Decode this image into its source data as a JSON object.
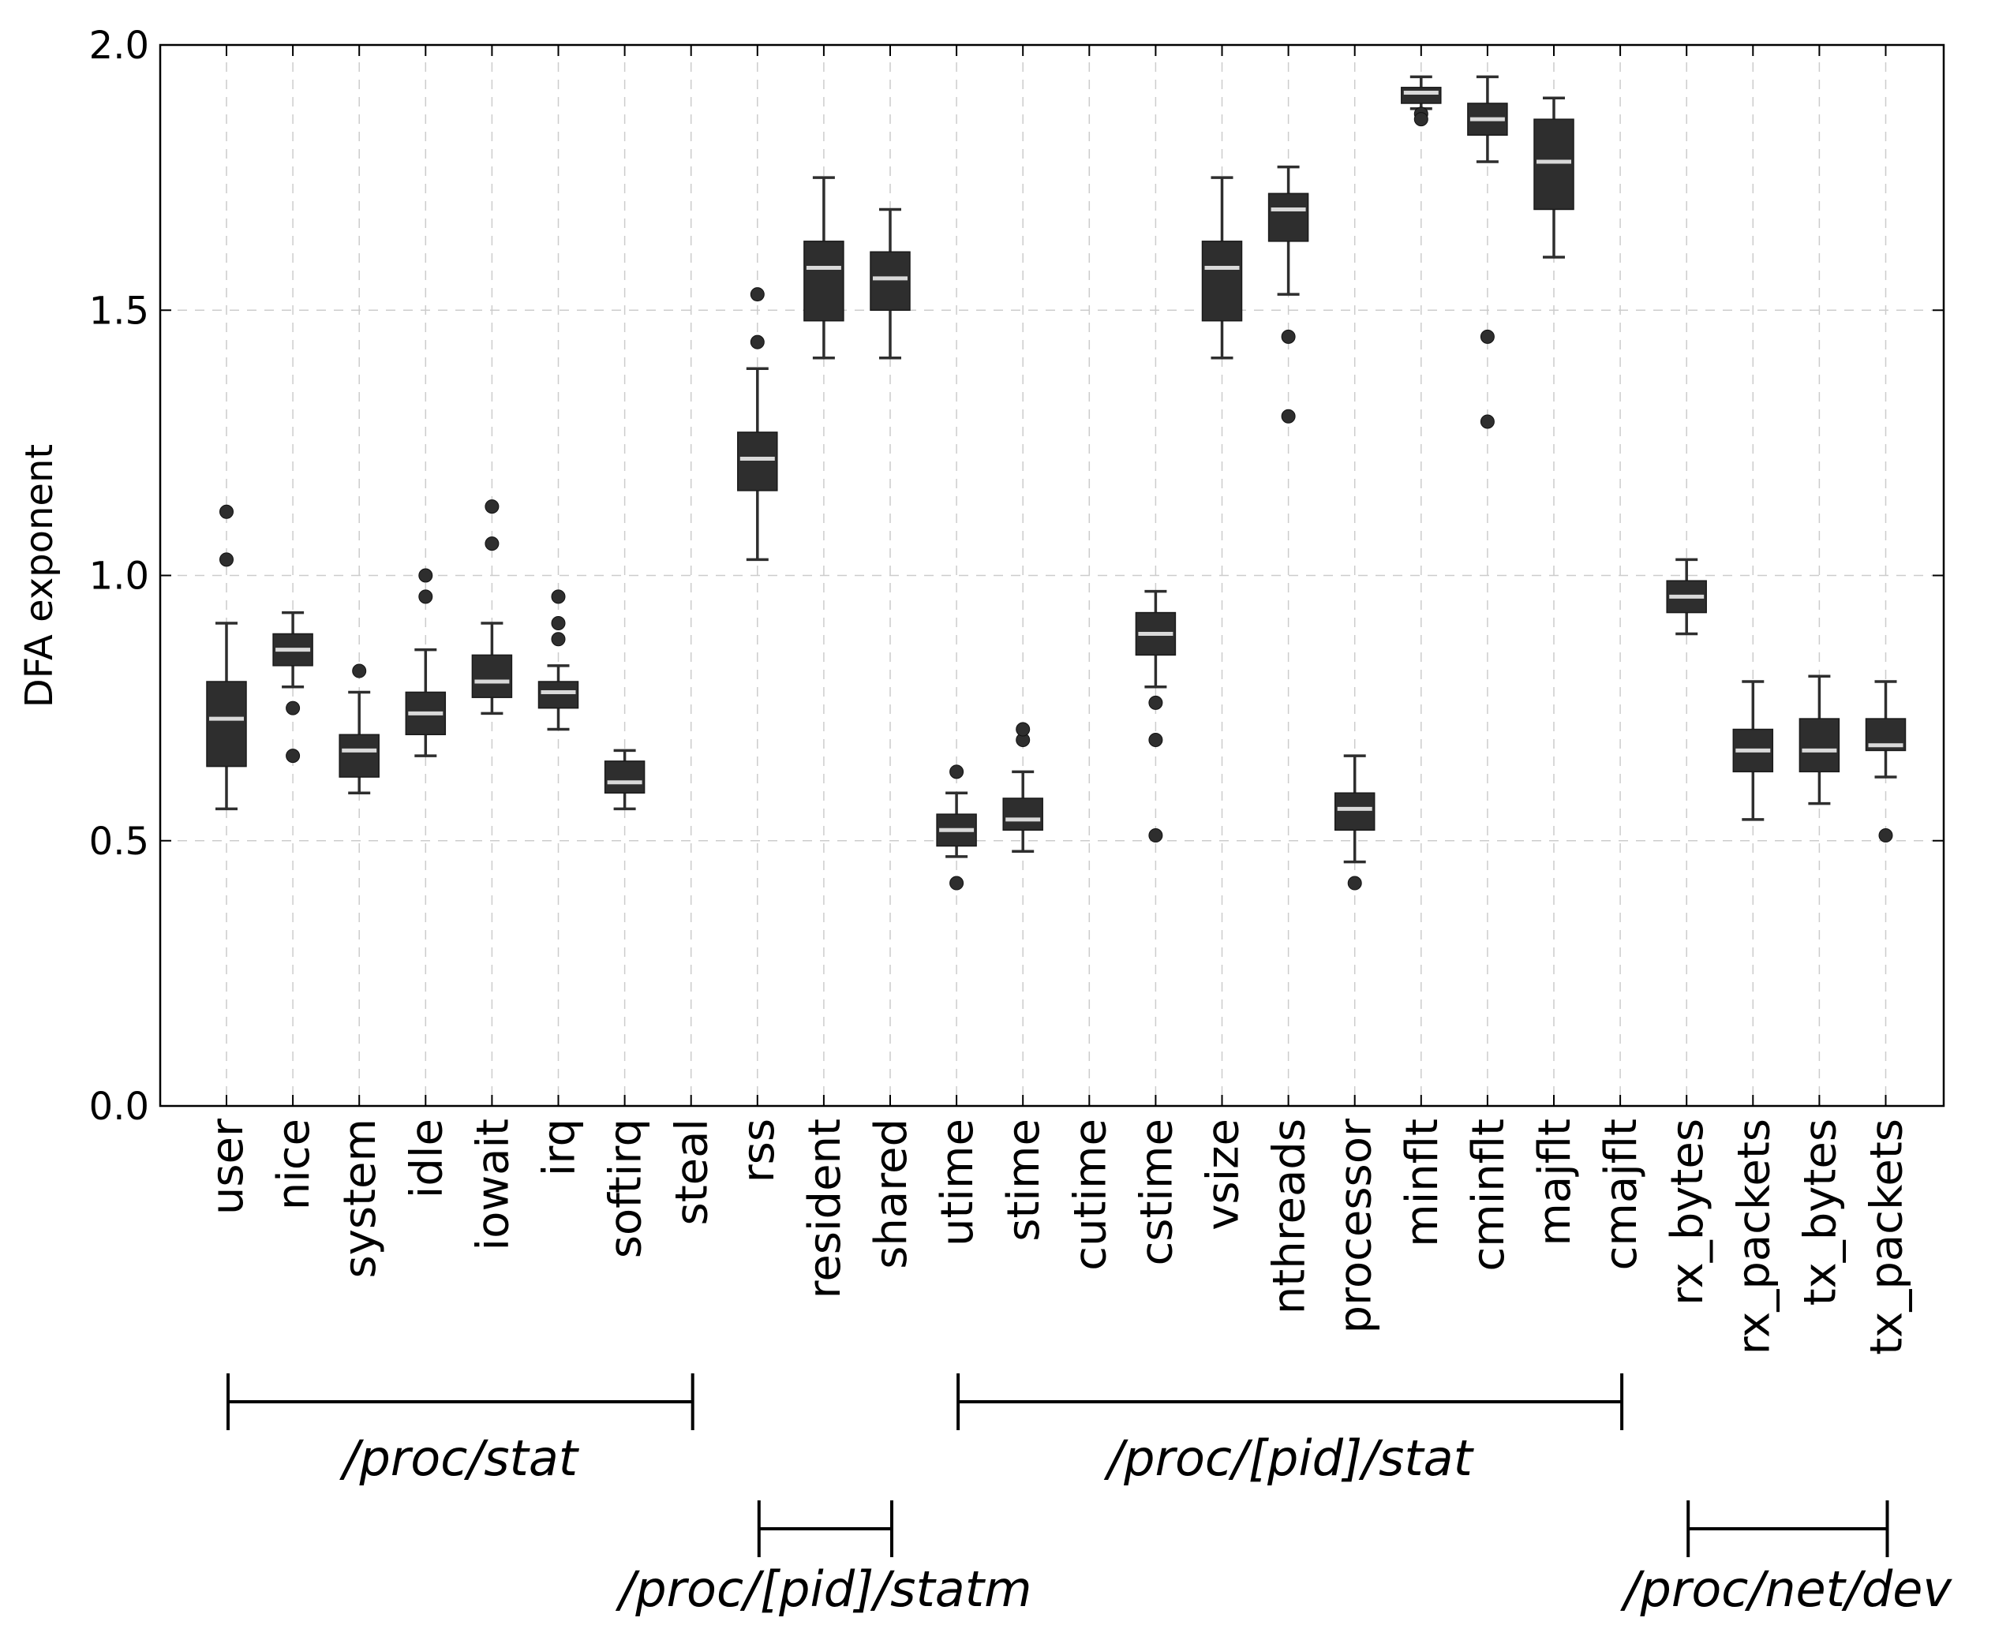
{
  "chart_data": {
    "type": "boxplot",
    "ylabel": "DFA exponent",
    "xlabel": "",
    "ylim": [
      0.0,
      2.0
    ],
    "yticks": [
      0.0,
      0.5,
      1.0,
      1.5,
      2.0
    ],
    "ytick_labels": [
      "0.0",
      "0.5",
      "1.0",
      "1.5",
      "2.0"
    ],
    "grid": true,
    "categories": [
      "user",
      "nice",
      "system",
      "idle",
      "iowait",
      "irq",
      "softirq",
      "steal",
      "rss",
      "resident",
      "shared",
      "utime",
      "stime",
      "cutime",
      "cstime",
      "vsize",
      "nthreads",
      "processor",
      "minflt",
      "cminflt",
      "majflt",
      "cmajflt",
      "rx_bytes",
      "rx_packets",
      "tx_bytes",
      "tx_packets"
    ],
    "boxes": [
      {
        "label": "user",
        "wlo": 0.56,
        "q1": 0.64,
        "med": 0.73,
        "q3": 0.8,
        "whi": 0.91,
        "outliers": [
          1.03,
          1.12
        ]
      },
      {
        "label": "nice",
        "wlo": 0.79,
        "q1": 0.83,
        "med": 0.86,
        "q3": 0.89,
        "whi": 0.93,
        "outliers": [
          0.75,
          0.66
        ]
      },
      {
        "label": "system",
        "wlo": 0.59,
        "q1": 0.62,
        "med": 0.67,
        "q3": 0.7,
        "whi": 0.78,
        "outliers": [
          0.82
        ]
      },
      {
        "label": "idle",
        "wlo": 0.66,
        "q1": 0.7,
        "med": 0.74,
        "q3": 0.78,
        "whi": 0.86,
        "outliers": [
          0.96,
          1.0
        ]
      },
      {
        "label": "iowait",
        "wlo": 0.74,
        "q1": 0.77,
        "med": 0.8,
        "q3": 0.85,
        "whi": 0.91,
        "outliers": [
          1.06,
          1.13
        ]
      },
      {
        "label": "irq",
        "wlo": 0.71,
        "q1": 0.75,
        "med": 0.78,
        "q3": 0.8,
        "whi": 0.83,
        "outliers": [
          0.88,
          0.91,
          0.96
        ]
      },
      {
        "label": "softirq",
        "wlo": 0.56,
        "q1": 0.59,
        "med": 0.61,
        "q3": 0.65,
        "whi": 0.67,
        "outliers": []
      },
      {
        "label": "steal",
        "empty": true
      },
      {
        "label": "rss",
        "wlo": 1.03,
        "q1": 1.16,
        "med": 1.22,
        "q3": 1.27,
        "whi": 1.39,
        "outliers": [
          1.44,
          1.53
        ]
      },
      {
        "label": "resident",
        "wlo": 1.41,
        "q1": 1.48,
        "med": 1.58,
        "q3": 1.63,
        "whi": 1.75,
        "outliers": []
      },
      {
        "label": "shared",
        "wlo": 1.41,
        "q1": 1.5,
        "med": 1.56,
        "q3": 1.61,
        "whi": 1.69,
        "outliers": []
      },
      {
        "label": "utime",
        "wlo": 0.47,
        "q1": 0.49,
        "med": 0.52,
        "q3": 0.55,
        "whi": 0.59,
        "outliers": [
          0.63,
          0.42
        ]
      },
      {
        "label": "stime",
        "wlo": 0.48,
        "q1": 0.52,
        "med": 0.54,
        "q3": 0.58,
        "whi": 0.63,
        "outliers": [
          0.69,
          0.71
        ]
      },
      {
        "label": "cutime",
        "empty": true
      },
      {
        "label": "cstime",
        "wlo": 0.79,
        "q1": 0.85,
        "med": 0.89,
        "q3": 0.93,
        "whi": 0.97,
        "outliers": [
          0.76,
          0.69,
          0.51
        ]
      },
      {
        "label": "vsize",
        "wlo": 1.41,
        "q1": 1.48,
        "med": 1.58,
        "q3": 1.63,
        "whi": 1.75,
        "outliers": []
      },
      {
        "label": "nthreads",
        "wlo": 1.53,
        "q1": 1.63,
        "med": 1.69,
        "q3": 1.72,
        "whi": 1.77,
        "outliers": [
          1.45,
          1.3
        ]
      },
      {
        "label": "processor",
        "wlo": 0.46,
        "q1": 0.52,
        "med": 0.56,
        "q3": 0.59,
        "whi": 0.66,
        "outliers": [
          0.42
        ]
      },
      {
        "label": "minflt",
        "wlo": 1.88,
        "q1": 1.89,
        "med": 1.91,
        "q3": 1.92,
        "whi": 1.94,
        "outliers": [
          1.87,
          1.86
        ]
      },
      {
        "label": "cminflt",
        "wlo": 1.78,
        "q1": 1.83,
        "med": 1.86,
        "q3": 1.89,
        "whi": 1.94,
        "outliers": [
          1.45,
          1.29
        ]
      },
      {
        "label": "majflt",
        "wlo": 1.6,
        "q1": 1.69,
        "med": 1.78,
        "q3": 1.86,
        "whi": 1.9,
        "outliers": []
      },
      {
        "label": "cmajflt",
        "empty": true
      },
      {
        "label": "rx_bytes",
        "wlo": 0.89,
        "q1": 0.93,
        "med": 0.96,
        "q3": 0.99,
        "whi": 1.03,
        "outliers": []
      },
      {
        "label": "rx_packets",
        "wlo": 0.54,
        "q1": 0.63,
        "med": 0.67,
        "q3": 0.71,
        "whi": 0.8,
        "outliers": []
      },
      {
        "label": "tx_bytes",
        "wlo": 0.57,
        "q1": 0.63,
        "med": 0.67,
        "q3": 0.73,
        "whi": 0.81,
        "outliers": []
      },
      {
        "label": "tx_packets",
        "wlo": 0.62,
        "q1": 0.67,
        "med": 0.68,
        "q3": 0.73,
        "whi": 0.8,
        "outliers": [
          0.51
        ]
      }
    ],
    "groups": [
      {
        "label": "/proc/stat",
        "first": "user",
        "last": "steal",
        "row": 1
      },
      {
        "label": "/proc/[pid]/statm",
        "first": "rss",
        "last": "shared",
        "row": 2
      },
      {
        "label": "/proc/[pid]/stat",
        "first": "utime",
        "last": "cmajflt",
        "row": 1
      },
      {
        "label": "/proc/net/dev",
        "first": "rx_bytes",
        "last": "tx_packets",
        "row": 2
      }
    ],
    "colors": {
      "box": "#2e2e2e",
      "median": "#d9d9d9",
      "whisker": "#2e2e2e",
      "grid": "#cccccc",
      "axis": "#000000"
    }
  }
}
